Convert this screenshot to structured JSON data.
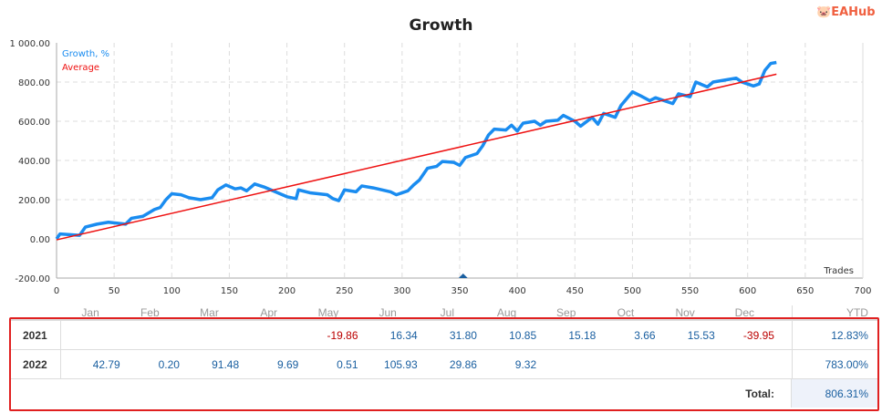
{
  "chart_data": {
    "type": "line",
    "title": "Growth",
    "xlabel": "Trades",
    "ylabel": "",
    "xlim": [
      0,
      700
    ],
    "ylim": [
      -200,
      1000
    ],
    "xticks": [
      "0",
      "50",
      "100",
      "150",
      "200",
      "250",
      "300",
      "350",
      "400",
      "450",
      "500",
      "550",
      "600",
      "650",
      "700"
    ],
    "yticks": [
      "1 000.00",
      "800.00",
      "600.00",
      "400.00",
      "200.00",
      "0.00",
      "-200.00"
    ],
    "legend": [
      "Growth, %",
      "Average"
    ],
    "legend_position": "top-left",
    "grid": true,
    "colors": {
      "growth": "#1a8cf0",
      "average": "#ee1111"
    },
    "series": [
      {
        "name": "Growth, %",
        "x": [
          0,
          3,
          20,
          25,
          35,
          45,
          60,
          65,
          75,
          85,
          90,
          95,
          100,
          108,
          115,
          125,
          135,
          140,
          147,
          155,
          160,
          165,
          172,
          180,
          190,
          200,
          208,
          210,
          220,
          235,
          240,
          245,
          250,
          260,
          265,
          275,
          290,
          295,
          305,
          310,
          315,
          322,
          330,
          335,
          345,
          350,
          355,
          365,
          370,
          375,
          380,
          390,
          395,
          400,
          405,
          415,
          420,
          425,
          435,
          440,
          450,
          455,
          465,
          470,
          475,
          485,
          490,
          500,
          507,
          515,
          520,
          530,
          535,
          540,
          550,
          555,
          565,
          570,
          580,
          590,
          595,
          605,
          610,
          615,
          620,
          625
        ],
        "y": [
          0,
          25,
          18,
          60,
          75,
          85,
          75,
          105,
          115,
          150,
          160,
          200,
          230,
          225,
          210,
          200,
          210,
          250,
          275,
          255,
          260,
          245,
          280,
          265,
          240,
          215,
          205,
          250,
          235,
          225,
          205,
          195,
          250,
          240,
          270,
          260,
          240,
          225,
          245,
          275,
          300,
          360,
          370,
          395,
          390,
          375,
          415,
          435,
          475,
          530,
          560,
          555,
          580,
          550,
          590,
          600,
          580,
          600,
          605,
          630,
          600,
          575,
          620,
          585,
          640,
          620,
          680,
          750,
          730,
          705,
          720,
          700,
          690,
          740,
          725,
          800,
          775,
          800,
          810,
          820,
          800,
          780,
          790,
          860,
          895,
          900
        ]
      },
      {
        "name": "Average",
        "x": [
          0,
          625
        ],
        "y": [
          -5,
          840
        ]
      }
    ],
    "marker_x": 353
  },
  "table": {
    "headers": [
      "Jan",
      "Feb",
      "Mar",
      "Apr",
      "May",
      "Jun",
      "Jul",
      "Aug",
      "Sep",
      "Oct",
      "Nov",
      "Dec",
      "YTD"
    ],
    "rows": [
      {
        "year": "2021",
        "values": [
          "",
          "",
          "",
          "",
          "-19.86",
          "16.34",
          "31.80",
          "10.85",
          "15.18",
          "3.66",
          "15.53",
          "-39.95"
        ],
        "ytd": "12.83%"
      },
      {
        "year": "2022",
        "values": [
          "42.79",
          "0.20",
          "91.48",
          "9.69",
          "0.51",
          "105.93",
          "29.86",
          "9.32",
          "",
          "",
          "",
          ""
        ],
        "ytd": "783.00%"
      }
    ],
    "total_label": "Total:",
    "total": "806.31%"
  },
  "watermark": "EAHub"
}
